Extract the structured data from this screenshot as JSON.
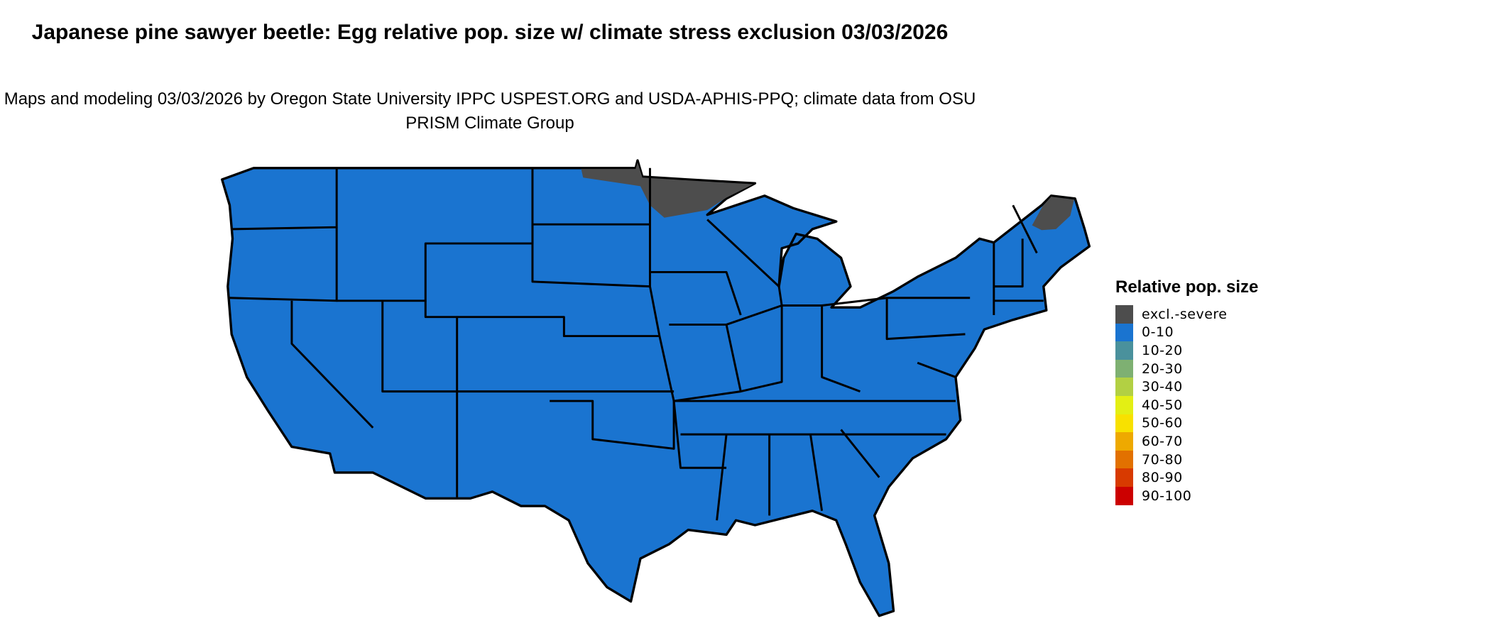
{
  "title": "Japanese pine sawyer beetle: Egg relative pop. size w/ climate stress exclusion 03/03/2026",
  "subtitle": "Maps and modeling 03/03/2026 by Oregon State University IPPC USPEST.ORG and USDA-APHIS-PPQ; climate data from OSU PRISM Climate Group",
  "map": {
    "region": "Contiguous United States",
    "dominant_class": "0-10",
    "excluded_areas_class": "excl.-severe"
  },
  "legend": {
    "title": "Relative pop. size",
    "items": [
      {
        "label": "excl.-severe",
        "color": "#4d4d4d"
      },
      {
        "label": "0-10",
        "color": "#1a74d0"
      },
      {
        "label": "10-20",
        "color": "#4a919c"
      },
      {
        "label": "20-30",
        "color": "#7eb072"
      },
      {
        "label": "30-40",
        "color": "#b2d043"
      },
      {
        "label": "40-50",
        "color": "#e3ef14"
      },
      {
        "label": "50-60",
        "color": "#f8e100"
      },
      {
        "label": "60-70",
        "color": "#eea900"
      },
      {
        "label": "70-80",
        "color": "#e27100"
      },
      {
        "label": "80-90",
        "color": "#d83a00"
      },
      {
        "label": "90-100",
        "color": "#cc0000"
      }
    ]
  }
}
